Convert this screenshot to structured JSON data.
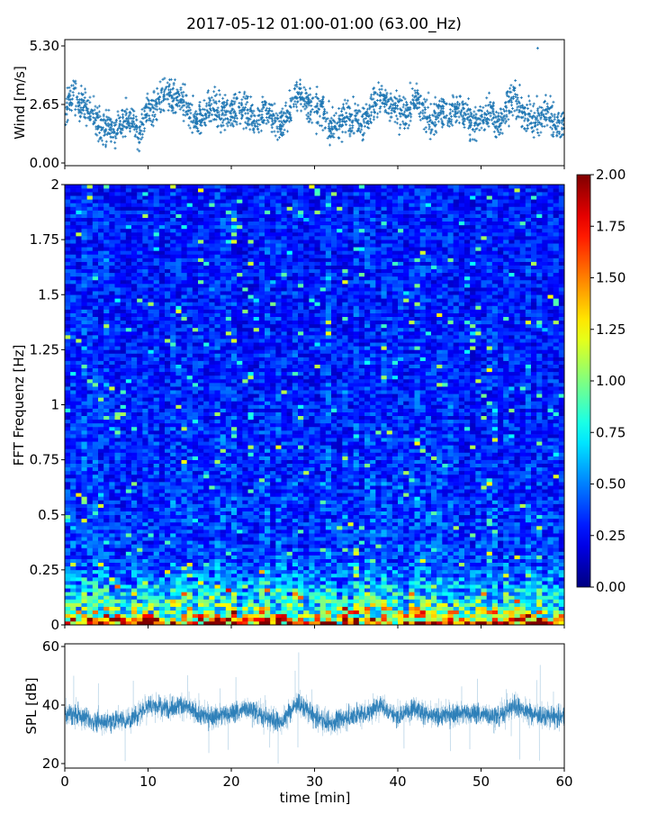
{
  "title": "2017-05-12 01:00-01:00 (63.00_Hz)",
  "chart_data": [
    {
      "type": "scatter",
      "panel": "wind",
      "ylabel": "Wind [m/s]",
      "ylim": [
        0,
        5.3
      ],
      "xlim": [
        0,
        60
      ],
      "yticks": [
        "0.00",
        "2.65",
        "5.30"
      ],
      "marker": "+",
      "color": "#1f77b4",
      "x_unit": "min",
      "minute_means": [
        2.2,
        3.2,
        2.6,
        2.4,
        1.8,
        1.6,
        1.5,
        2.0,
        1.8,
        1.5,
        2.5,
        2.5,
        3.2,
        2.8,
        2.9,
        2.2,
        1.9,
        2.4,
        2.5,
        2.2,
        2.3,
        2.6,
        2.3,
        1.8,
        2.5,
        2.0,
        1.7,
        2.4,
        3.2,
        2.8,
        2.3,
        2.4,
        1.5,
        1.8,
        2.2,
        2.0,
        1.9,
        2.6,
        3.0,
        2.5,
        2.3,
        2.2,
        2.9,
        2.3,
        2.0,
        2.4,
        2.0,
        2.5,
        2.3,
        1.8,
        1.9,
        2.3,
        1.8,
        2.5,
        3.0,
        2.2,
        2.0,
        1.9,
        2.4,
        1.8
      ],
      "max_value": 5.2
    },
    {
      "type": "heatmap",
      "panel": "spectrogram",
      "ylabel": "FFT Frequenz [Hz]",
      "ylim": [
        0,
        2
      ],
      "xlim": [
        0,
        60
      ],
      "yticks": [
        "0",
        "0.25",
        "0.5",
        "0.75",
        "1",
        "1.25",
        "1.5",
        "1.75",
        "2"
      ],
      "colormap": "jet",
      "clim": [
        0,
        2
      ],
      "colorbar_ticks": [
        "0.00",
        "0.25",
        "0.50",
        "0.75",
        "1.00",
        "1.25",
        "1.50",
        "1.75",
        "2.00"
      ],
      "frequency_profile": [
        {
          "f": 0.0,
          "level": 1.7
        },
        {
          "f": 0.05,
          "level": 1.1
        },
        {
          "f": 0.1,
          "level": 0.8
        },
        {
          "f": 0.2,
          "level": 0.55
        },
        {
          "f": 0.3,
          "level": 0.38
        },
        {
          "f": 1.0,
          "level": 0.32
        },
        {
          "f": 2.0,
          "level": 0.3
        }
      ]
    },
    {
      "type": "line",
      "panel": "spl",
      "ylabel": "SPL [dB]",
      "xlabel": "time [min]",
      "ylim": [
        18,
        61
      ],
      "xlim": [
        0,
        60
      ],
      "yticks": [
        "20",
        "40",
        "60"
      ],
      "xticks": [
        "0",
        "10",
        "20",
        "30",
        "40",
        "50",
        "60"
      ],
      "color": "#1f77b4",
      "two_minute_means": [
        37,
        36,
        34,
        35,
        35,
        40,
        39,
        40,
        37,
        36,
        37,
        39,
        36,
        34,
        41,
        36,
        34,
        36,
        37,
        40,
        36,
        39,
        36,
        37,
        37,
        37,
        36,
        40,
        37,
        36
      ],
      "range": [
        20,
        59
      ]
    }
  ]
}
